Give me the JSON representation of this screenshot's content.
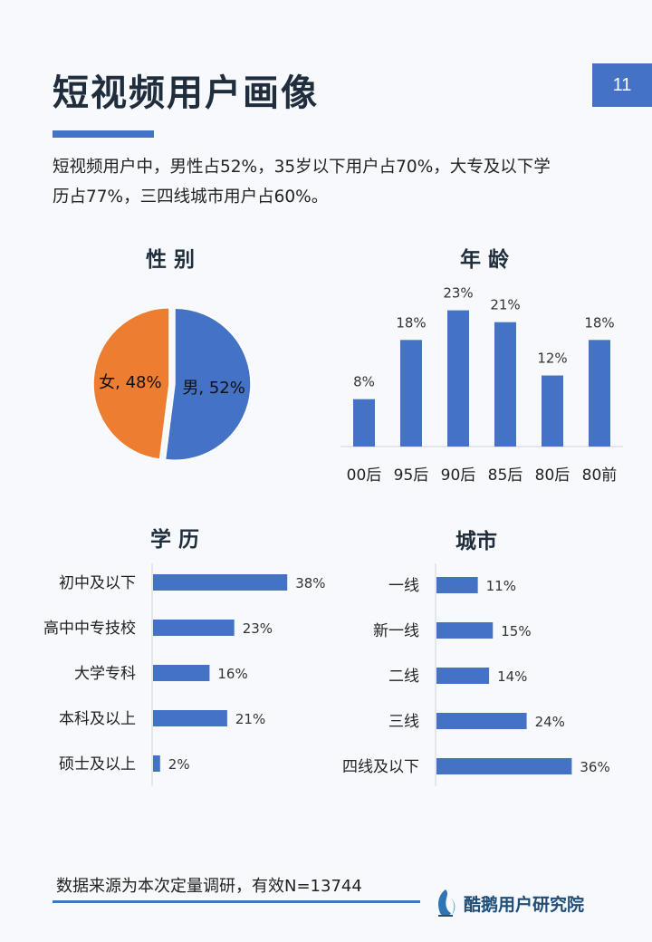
{
  "page": {
    "title": "短视频用户画像",
    "number": "11",
    "summary_line1": "短视频用户中，男性占52%，35岁以下用户占70%，大专及以下学",
    "summary_line2": "历占77%，三四线城市用户占60%。",
    "footer_source": "数据来源为本次定量调研，有效N=13744",
    "brand_name": "酷鹅用户研究院"
  },
  "colors": {
    "accent": "#4472c4",
    "orange": "#ed7d31"
  },
  "chart_data": [
    {
      "type": "pie",
      "title": "性 别",
      "slices": [
        {
          "label": "男",
          "value": 52,
          "data_label": "男, 52%",
          "color": "#4472c4"
        },
        {
          "label": "女",
          "value": 48,
          "data_label": "女, 48%",
          "color": "#ed7d31"
        }
      ]
    },
    {
      "type": "bar",
      "orientation": "vertical",
      "title": "年 龄",
      "categories": [
        "00后",
        "95后",
        "90后",
        "85后",
        "80后",
        "80前"
      ],
      "values": [
        8,
        18,
        23,
        21,
        12,
        18
      ],
      "data_labels": [
        "8%",
        "18%",
        "23%",
        "21%",
        "12%",
        "18%"
      ],
      "ylim": [
        0,
        26
      ],
      "color": "#4472c4"
    },
    {
      "type": "bar",
      "orientation": "horizontal",
      "title": "学 历",
      "categories": [
        "初中及以下",
        "高中中专技校",
        "大学专科",
        "本科及以上",
        "硕士及以上"
      ],
      "values": [
        38,
        23,
        16,
        21,
        2
      ],
      "data_labels": [
        "38%",
        "23%",
        "16%",
        "21%",
        "2%"
      ],
      "xlim": [
        0,
        40
      ],
      "color": "#4472c4"
    },
    {
      "type": "bar",
      "orientation": "horizontal",
      "title": "城市",
      "categories": [
        "一线",
        "新一线",
        "二线",
        "三线",
        "四线及以下"
      ],
      "values": [
        11,
        15,
        14,
        24,
        36
      ],
      "data_labels": [
        "11%",
        "15%",
        "14%",
        "24%",
        "36%"
      ],
      "xlim": [
        0,
        40
      ],
      "color": "#4472c4"
    }
  ]
}
